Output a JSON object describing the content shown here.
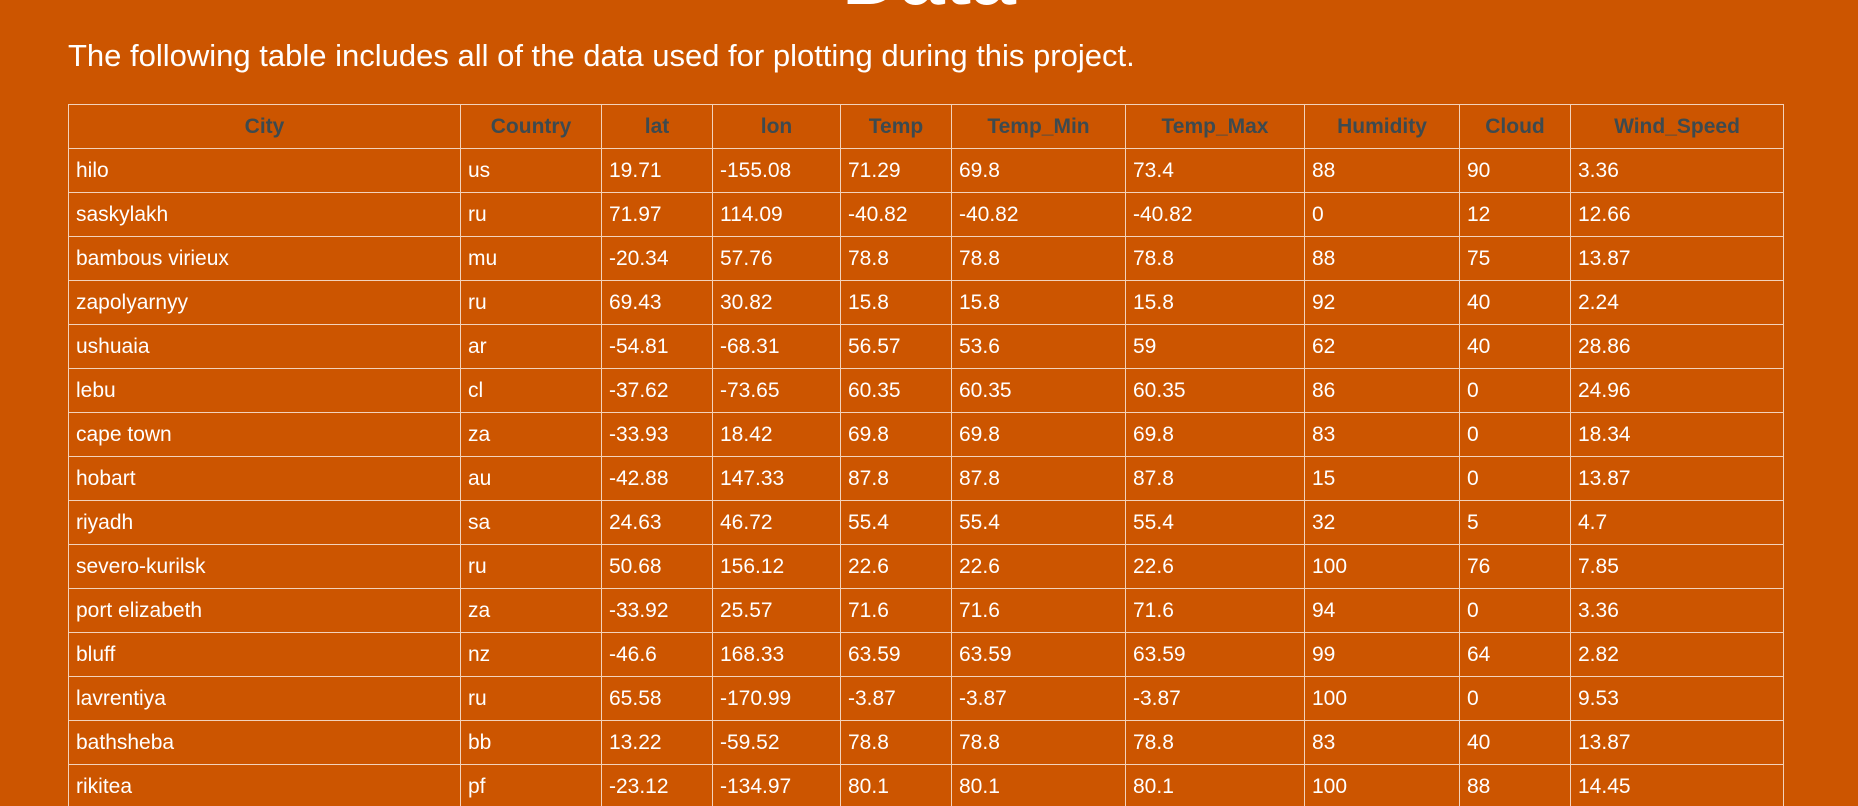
{
  "page": {
    "title": "Data",
    "intro": "The following table includes all of the data used for plotting during this project."
  },
  "table": {
    "columns": [
      "City",
      "Country",
      "lat",
      "lon",
      "Temp",
      "Temp_Min",
      "Temp_Max",
      "Humidity",
      "Cloud",
      "Wind_Speed"
    ],
    "rows": [
      [
        "hilo",
        "us",
        "19.71",
        "-155.08",
        "71.29",
        "69.8",
        "73.4",
        "88",
        "90",
        "3.36"
      ],
      [
        "saskylakh",
        "ru",
        "71.97",
        "114.09",
        "-40.82",
        "-40.82",
        "-40.82",
        "0",
        "12",
        "12.66"
      ],
      [
        "bambous virieux",
        "mu",
        "-20.34",
        "57.76",
        "78.8",
        "78.8",
        "78.8",
        "88",
        "75",
        "13.87"
      ],
      [
        "zapolyarnyy",
        "ru",
        "69.43",
        "30.82",
        "15.8",
        "15.8",
        "15.8",
        "92",
        "40",
        "2.24"
      ],
      [
        "ushuaia",
        "ar",
        "-54.81",
        "-68.31",
        "56.57",
        "53.6",
        "59",
        "62",
        "40",
        "28.86"
      ],
      [
        "lebu",
        "cl",
        "-37.62",
        "-73.65",
        "60.35",
        "60.35",
        "60.35",
        "86",
        "0",
        "24.96"
      ],
      [
        "cape town",
        "za",
        "-33.93",
        "18.42",
        "69.8",
        "69.8",
        "69.8",
        "83",
        "0",
        "18.34"
      ],
      [
        "hobart",
        "au",
        "-42.88",
        "147.33",
        "87.8",
        "87.8",
        "87.8",
        "15",
        "0",
        "13.87"
      ],
      [
        "riyadh",
        "sa",
        "24.63",
        "46.72",
        "55.4",
        "55.4",
        "55.4",
        "32",
        "5",
        "4.7"
      ],
      [
        "severo-kurilsk",
        "ru",
        "50.68",
        "156.12",
        "22.6",
        "22.6",
        "22.6",
        "100",
        "76",
        "7.85"
      ],
      [
        "port elizabeth",
        "za",
        "-33.92",
        "25.57",
        "71.6",
        "71.6",
        "71.6",
        "94",
        "0",
        "3.36"
      ],
      [
        "bluff",
        "nz",
        "-46.6",
        "168.33",
        "63.59",
        "63.59",
        "63.59",
        "99",
        "64",
        "2.82"
      ],
      [
        "lavrentiya",
        "ru",
        "65.58",
        "-170.99",
        "-3.87",
        "-3.87",
        "-3.87",
        "100",
        "0",
        "9.53"
      ],
      [
        "bathsheba",
        "bb",
        "13.22",
        "-59.52",
        "78.8",
        "78.8",
        "78.8",
        "83",
        "40",
        "13.87"
      ],
      [
        "rikitea",
        "pf",
        "-23.12",
        "-134.97",
        "80.1",
        "80.1",
        "80.1",
        "100",
        "88",
        "14.45"
      ]
    ]
  },
  "colors": {
    "background": "#cc5500",
    "header_text": "#3d4a4f",
    "cell_text": "#ffffff",
    "border": "#f3d2bb"
  }
}
